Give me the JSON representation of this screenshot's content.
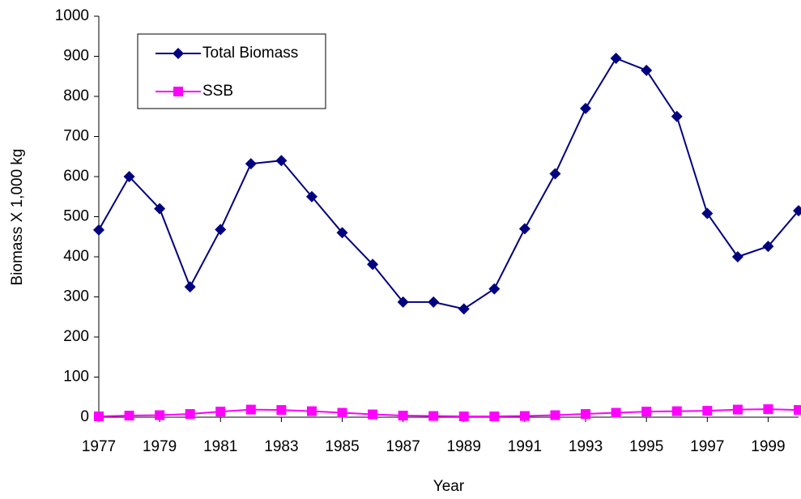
{
  "chart_data": {
    "type": "line",
    "x_label": "Year",
    "y_label": "Biomass X 1,000 kg",
    "x": [
      1977,
      1978,
      1979,
      1980,
      1981,
      1982,
      1983,
      1984,
      1985,
      1986,
      1987,
      1988,
      1989,
      1990,
      1991,
      1992,
      1993,
      1994,
      1995,
      1996,
      1997,
      1998,
      1999,
      2000
    ],
    "series": [
      {
        "name": "Total Biomass",
        "color": "#000080",
        "marker": "diamond",
        "values": [
          467,
          600,
          520,
          325,
          468,
          632,
          640,
          550,
          460,
          381,
          287,
          287,
          270,
          320,
          470,
          607,
          770,
          895,
          865,
          750,
          508,
          400,
          426,
          515
        ]
      },
      {
        "name": "SSB",
        "color": "#ff00ff",
        "marker": "square",
        "values": [
          2,
          4,
          5,
          8,
          14,
          19,
          18,
          15,
          11,
          7,
          4,
          3,
          2,
          2,
          3,
          5,
          8,
          11,
          14,
          15,
          16,
          19,
          20,
          18
        ]
      }
    ],
    "xlim": [
      1977,
      2000
    ],
    "xticks": [
      1977,
      1979,
      1981,
      1983,
      1985,
      1987,
      1989,
      1991,
      1993,
      1995,
      1997,
      1999
    ],
    "ylim": [
      0,
      1000
    ],
    "yticks": [
      0,
      100,
      200,
      300,
      400,
      500,
      600,
      700,
      800,
      900,
      1000
    ],
    "grid": false,
    "legend": "upper-left"
  }
}
